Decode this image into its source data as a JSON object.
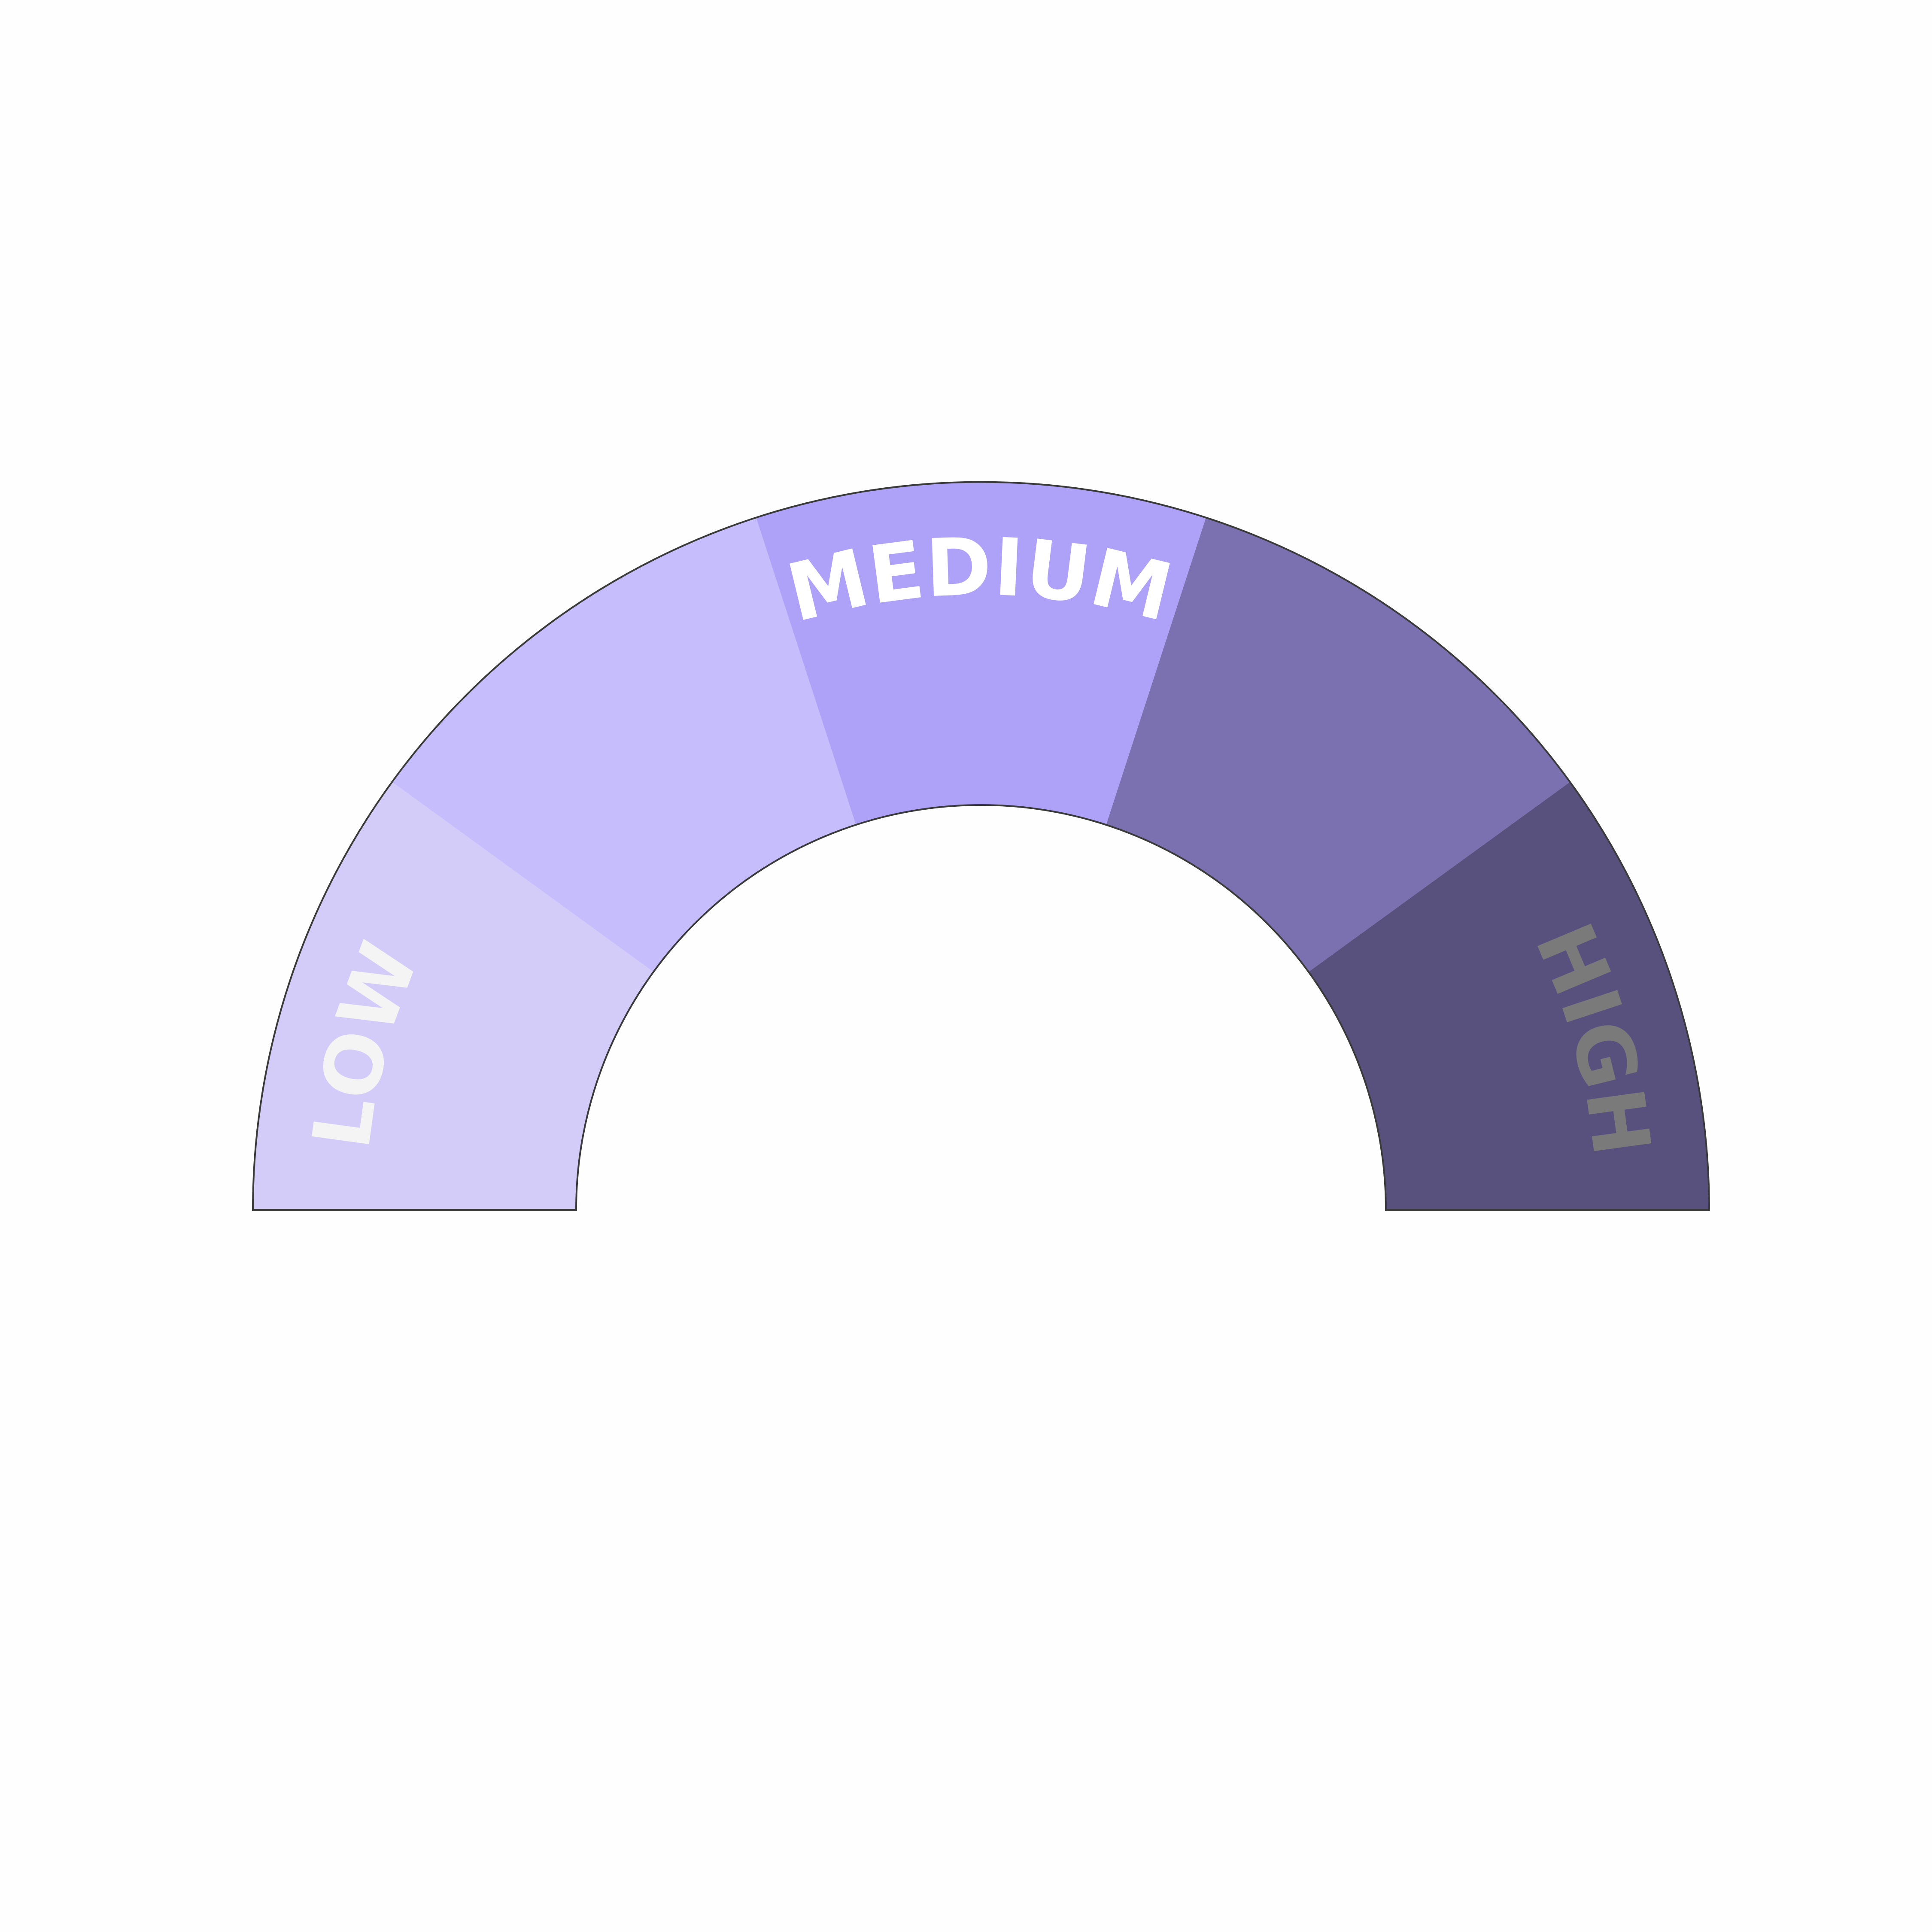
{
  "gauge": {
    "labels": [
      "LOW",
      "MEDIUM",
      "HIGH"
    ]
  }
}
